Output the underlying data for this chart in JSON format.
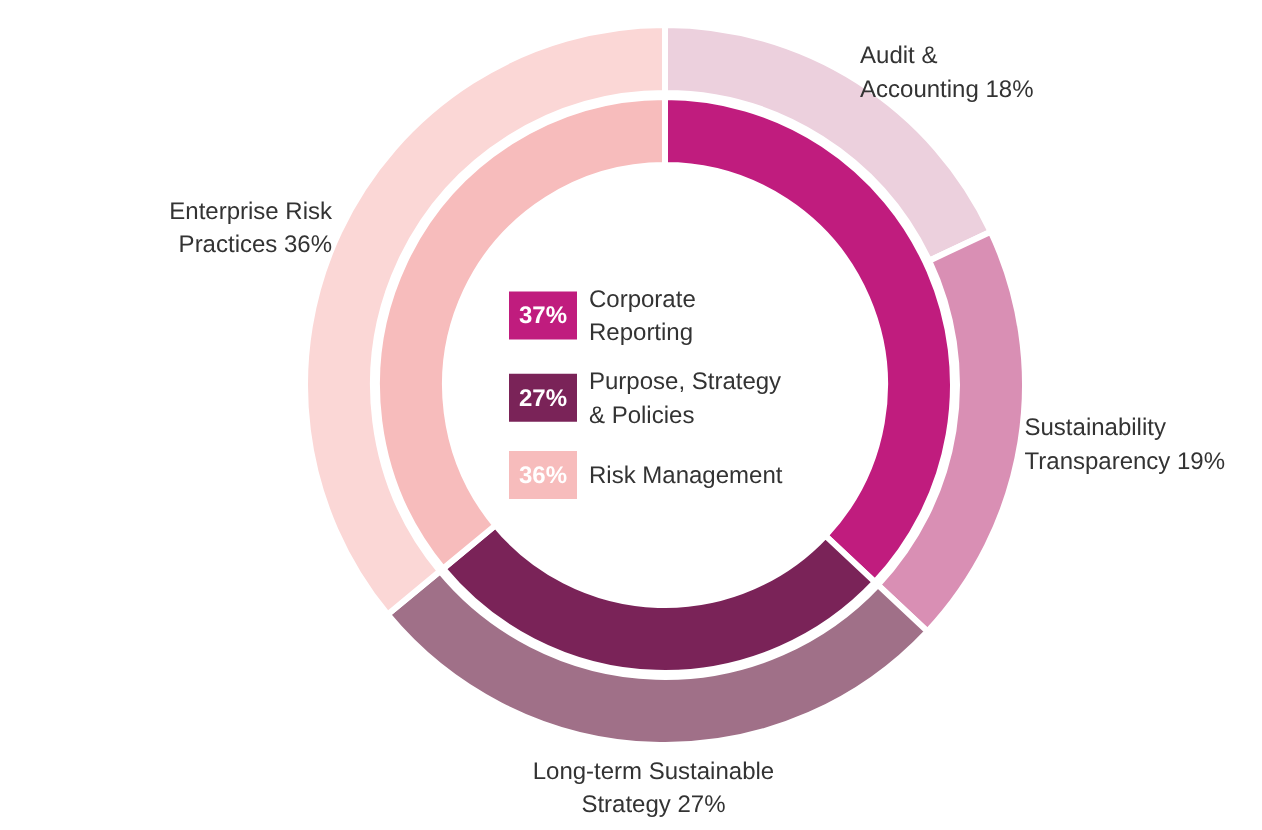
{
  "chart_data": {
    "type": "donut",
    "legend": "center",
    "categories": [
      "Corporate Reporting",
      "Purpose, Strategy & Policies",
      "Risk Management",
      "Audit & Accounting",
      "Sustainability Transparency",
      "Long-term Sustainable Strategy",
      "Enterprise Risk Practices"
    ],
    "series": [
      {
        "values": [
          37,
          27,
          36,
          null,
          null,
          null,
          null
        ],
        "value_labels": [
          "37%",
          "27%",
          "36%",
          null,
          null,
          null,
          null
        ],
        "colors": [
          "#c01c7e",
          "#7a2358",
          "#f7bcbc",
          null,
          null,
          null,
          null
        ]
      },
      {
        "values": [
          null,
          null,
          null,
          18,
          19,
          27,
          36
        ],
        "value_labels": [
          null,
          null,
          null,
          "18%",
          "19%",
          "27%",
          "36%"
        ],
        "colors": [
          null,
          null,
          null,
          "#ecd0dd",
          "#d98fb4",
          "#a07088",
          "#fbd7d6"
        ]
      }
    ]
  }
}
